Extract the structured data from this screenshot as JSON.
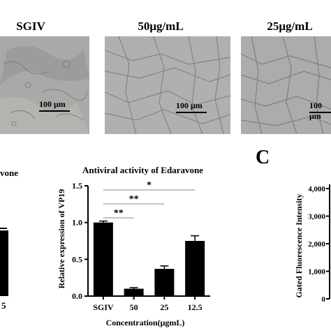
{
  "top_panels": {
    "labels": [
      "SGIV",
      "50μg/mL",
      "25μg/mL"
    ],
    "scale_text": "100 μm"
  },
  "left_partial": {
    "title_fragment": "vone",
    "tick_fragment": "5"
  },
  "panel_c": {
    "letter": "C",
    "ylabel": "Gated Fluorescence Intensity",
    "yticks": [
      "4,000",
      "3,000",
      "2,000",
      "1,000",
      "0"
    ]
  },
  "chart_data": {
    "type": "bar",
    "title": "Antiviral activity of Edaravone",
    "xlabel": "Concentration(μgmL)",
    "ylabel": "Relative expression of VP19",
    "categories": [
      "SGIV",
      "50",
      "25",
      "12.5"
    ],
    "values": [
      1.0,
      0.1,
      0.37,
      0.75
    ],
    "errors": [
      0.02,
      0.015,
      0.04,
      0.07
    ],
    "ylim": [
      0,
      1.5
    ],
    "yticks": [
      "0.0",
      "0.5",
      "1.0",
      "1.5"
    ],
    "significance": [
      {
        "from": "SGIV",
        "to": "12.5",
        "label": "*"
      },
      {
        "from": "SGIV",
        "to": "25",
        "label": "**"
      },
      {
        "from": "SGIV",
        "to": "50",
        "label": "**"
      }
    ],
    "bar_color": "#000000"
  }
}
